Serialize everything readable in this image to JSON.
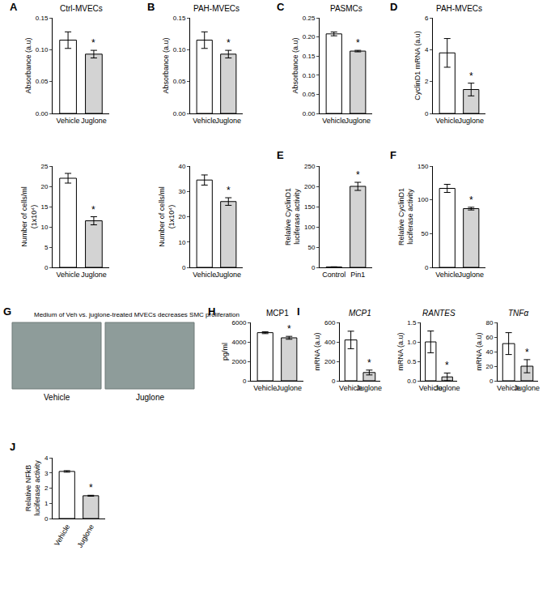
{
  "chart_data": [
    {
      "type": "bar",
      "panel": "A",
      "title": "Ctrl-MVECs",
      "ylabel": "Absorbance (a.u)",
      "categories": [
        "Vehicle",
        "Juglone"
      ],
      "values": [
        0.115,
        0.093
      ],
      "errors": [
        0.013,
        0.006
      ],
      "colors": [
        "#ffffff",
        "#d3d3d3"
      ],
      "ylim": [
        0,
        0.15
      ],
      "yticks": [
        {
          "value": 0,
          "label": "0.00"
        },
        0.05,
        {
          "value": 0.1,
          "label": "0.10"
        },
        0.15
      ],
      "annotations": [
        {
          "x": "Juglone",
          "text": "*"
        }
      ]
    },
    {
      "type": "bar",
      "ylabel": "Number of cells/ml\n(1x10⁴)",
      "categories": [
        "Vehicle",
        "Juglone"
      ],
      "values": [
        22,
        11.5
      ],
      "errors": [
        1.2,
        1.0
      ],
      "colors": [
        "#ffffff",
        "#d3d3d3"
      ],
      "ylim": [
        0,
        25
      ],
      "yticks": [
        0,
        5,
        10,
        15,
        20,
        25
      ],
      "annotations": [
        {
          "x": "Juglone",
          "text": "*"
        }
      ]
    },
    {
      "type": "bar",
      "panel": "B",
      "title": "PAH-MVECs",
      "ylabel": "Absorbance (a.u)",
      "categories": [
        "Vehicle",
        "Juglone"
      ],
      "values": [
        0.115,
        0.093
      ],
      "errors": [
        0.013,
        0.006
      ],
      "colors": [
        "#ffffff",
        "#d3d3d3"
      ],
      "ylim": [
        0,
        0.15
      ],
      "yticks": [
        {
          "value": 0,
          "label": "0.00"
        },
        0.05,
        {
          "value": 0.1,
          "label": "0.10"
        },
        0.15
      ],
      "annotations": [
        {
          "x": "Juglone",
          "text": "*"
        }
      ]
    },
    {
      "type": "bar",
      "ylabel": "Number of cells/ml\n(1x10⁴)",
      "categories": [
        "Vehicle",
        "Juglone"
      ],
      "values": [
        34.5,
        26
      ],
      "errors": [
        2,
        1.5
      ],
      "colors": [
        "#ffffff",
        "#d3d3d3"
      ],
      "ylim": [
        0,
        40
      ],
      "yticks": [
        0,
        10,
        20,
        30,
        40
      ],
      "annotations": [
        {
          "x": "Juglone",
          "text": "*"
        }
      ]
    },
    {
      "type": "bar",
      "panel": "C",
      "title": "PASMCs",
      "ylabel": "Absorbance (a.u)",
      "categories": [
        "Vehicle",
        "Juglone"
      ],
      "values": [
        0.208,
        0.163
      ],
      "errors": [
        0.005,
        0.002
      ],
      "colors": [
        "#ffffff",
        "#d3d3d3"
      ],
      "ylim": [
        0,
        0.25
      ],
      "yticks": [
        {
          "value": 0,
          "label": "0.00"
        },
        0.05,
        {
          "value": 0.1,
          "label": "0.10"
        },
        0.15,
        {
          "value": 0.2,
          "label": "0.20"
        },
        0.25
      ],
      "annotations": [
        {
          "x": "Juglone",
          "text": "*"
        }
      ]
    },
    {
      "type": "bar",
      "panel": "D",
      "title": "PAH-MVECs",
      "ylabel": "CyclinD1 mRNA (a.u)",
      "categories": [
        "Vehicle",
        "Juglone"
      ],
      "values": [
        3.8,
        1.5
      ],
      "errors": [
        0.9,
        0.4
      ],
      "colors": [
        "#ffffff",
        "#d3d3d3"
      ],
      "ylim": [
        0,
        6
      ],
      "yticks": [
        0,
        2,
        4,
        6
      ],
      "annotations": [
        {
          "x": "Juglone",
          "text": "*"
        }
      ]
    },
    {
      "type": "bar",
      "panel": "E",
      "ylabel": "Relative CyclinD1\nluciferase activity",
      "categories": [
        "Control",
        "Pin1"
      ],
      "values": [
        1,
        200
      ],
      "errors": [
        0.5,
        10
      ],
      "colors": [
        "#ffffff",
        "#d3d3d3"
      ],
      "ylim": [
        0,
        250
      ],
      "yticks": [
        0,
        50,
        100,
        150,
        200,
        250
      ],
      "annotations": [
        {
          "x": "Pin1",
          "text": "*"
        }
      ]
    },
    {
      "type": "bar",
      "panel": "F",
      "ylabel": "Relative CyclinD1\nluciferase activity",
      "categories": [
        "Vehicle",
        "Juglone"
      ],
      "values": [
        117,
        87
      ],
      "errors": [
        6,
        2
      ],
      "colors": [
        "#ffffff",
        "#d3d3d3"
      ],
      "ylim": [
        0,
        150
      ],
      "yticks": [
        0,
        50,
        100,
        150
      ],
      "annotations": [
        {
          "x": "Juglone",
          "text": "*"
        }
      ]
    },
    {
      "type": "image",
      "panel": "G",
      "title": "Medium of Veh vs. juglone-treated MVECs decreases SMC proliferation",
      "categories": [
        "Vehicle",
        "Juglone"
      ]
    },
    {
      "type": "bar",
      "panel": "H",
      "title": "MCP1",
      "ylabel": "pg/ml",
      "categories": [
        "Vehicle",
        "Juglone"
      ],
      "values": [
        4950,
        4420
      ],
      "errors": [
        100,
        150
      ],
      "colors": [
        "#ffffff",
        "#d3d3d3"
      ],
      "ylim": [
        0,
        6000
      ],
      "yticks": [
        0,
        2000,
        4000,
        6000
      ],
      "annotations": [
        {
          "x": "Juglone",
          "text": "*"
        }
      ]
    },
    {
      "type": "bar",
      "panel": "I",
      "title": "MCP1",
      "ylabel": "mRNA (a.u)",
      "categories": [
        "Vehicle",
        "Juglone"
      ],
      "values": [
        420,
        85
      ],
      "errors": [
        90,
        25
      ],
      "colors": [
        "#ffffff",
        "#d3d3d3"
      ],
      "ylim": [
        0,
        600
      ],
      "yticks": [
        0,
        200,
        400,
        600
      ],
      "annotations": [
        {
          "x": "Juglone",
          "text": "*"
        }
      ]
    },
    {
      "type": "bar",
      "title": "RANTES",
      "ylabel": "mRNA (a.u)",
      "categories": [
        "Vehicle",
        "Juglone"
      ],
      "values": [
        1.0,
        0.1
      ],
      "errors": [
        0.28,
        0.1
      ],
      "colors": [
        "#ffffff",
        "#d3d3d3"
      ],
      "ylim": [
        0,
        1.5
      ],
      "yticks": [
        {
          "value": 0,
          "label": "0.0"
        },
        0.5,
        {
          "value": 1,
          "label": "1.0"
        },
        1.5
      ],
      "annotations": [
        {
          "x": "Juglone",
          "text": "*"
        }
      ]
    },
    {
      "type": "bar",
      "title": "TNFα",
      "ylabel": "mRNA (a.u)",
      "categories": [
        "Vehicle",
        "Juglone"
      ],
      "values": [
        51,
        20
      ],
      "errors": [
        15,
        9
      ],
      "colors": [
        "#ffffff",
        "#d3d3d3"
      ],
      "ylim": [
        0,
        80
      ],
      "yticks": [
        0,
        20,
        40,
        60,
        80
      ],
      "annotations": [
        {
          "x": "Juglone",
          "text": "*"
        }
      ]
    },
    {
      "type": "bar",
      "panel": "J",
      "ylabel": "Relative NFkB\nluciferase activity",
      "categories": [
        "Vehicle",
        "Juglone"
      ],
      "values": [
        3.1,
        1.5
      ],
      "errors": [
        0.05,
        0.03
      ],
      "colors": [
        "#ffffff",
        "#d3d3d3"
      ],
      "ylim": [
        0,
        4
      ],
      "yticks": [
        0,
        1,
        2,
        3,
        4
      ],
      "annotations": [
        {
          "x": "Juglone",
          "text": "*"
        }
      ]
    }
  ]
}
